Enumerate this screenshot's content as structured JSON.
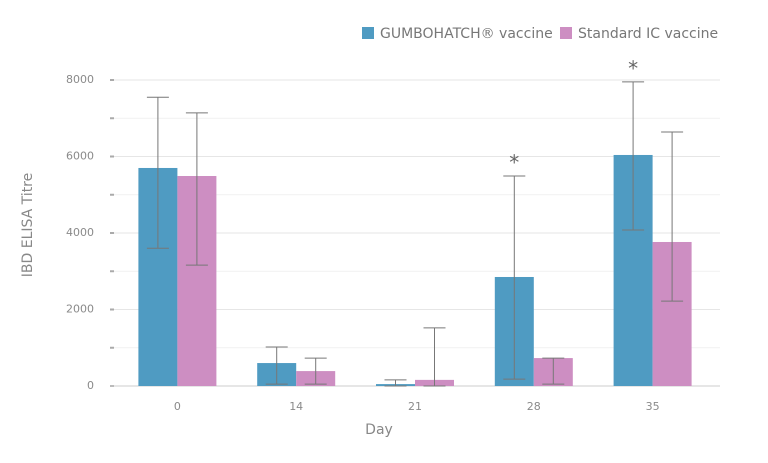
{
  "chart_data": {
    "type": "bar",
    "x_label": "Day",
    "y_label": "IBD ELISA Titre",
    "categories": [
      "0",
      "14",
      "21",
      "28",
      "35"
    ],
    "series": [
      {
        "name": "GUMBOHATCH® vaccine",
        "color": "#4f9bc2",
        "values": [
          5700,
          600,
          50,
          2850,
          6040
        ],
        "upper": [
          7550,
          1020,
          160,
          5490,
          7950
        ],
        "lower": [
          3600,
          50,
          0,
          180,
          4080
        ]
      },
      {
        "name": "Standard IC vaccine",
        "color": "#cd8ec2",
        "values": [
          5490,
          390,
          160,
          730,
          3765
        ],
        "upper": [
          7140,
          730,
          1520,
          730,
          6640
        ],
        "lower": [
          3160,
          50,
          0,
          50,
          2220
        ]
      }
    ],
    "annotations": [
      {
        "text": "*",
        "series": 0,
        "category": 3
      },
      {
        "text": "*",
        "series": 0,
        "category": 4
      }
    ],
    "ylim": [
      0,
      8000
    ],
    "yticks": [
      0,
      2000,
      4000,
      6000,
      8000
    ],
    "yminor": [
      1000,
      3000,
      5000,
      7000
    ],
    "grid": true
  }
}
